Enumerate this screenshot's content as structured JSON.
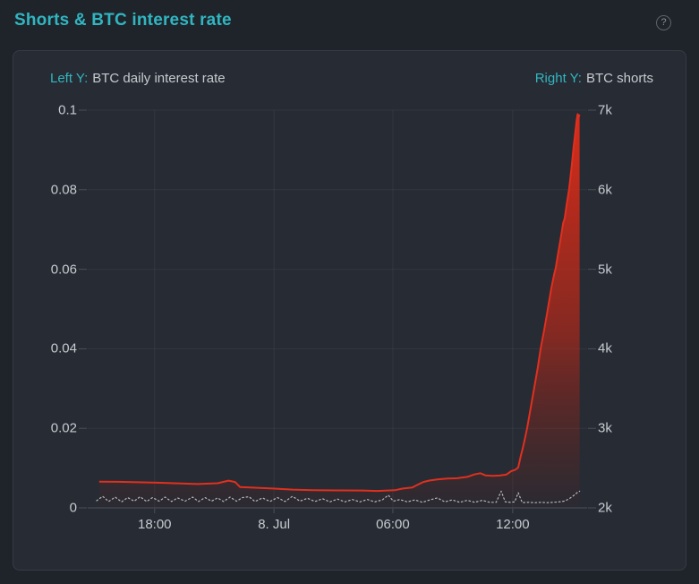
{
  "page": {
    "title": "Shorts & BTC interest rate",
    "help_icon": "?"
  },
  "legend": {
    "left_prefix": "Left Y:",
    "left_label": "BTC daily interest rate",
    "right_prefix": "Right Y:",
    "right_label": "BTC shorts"
  },
  "colors": {
    "accent_teal": "#31b6c1",
    "red_line": "#e0301f",
    "dotted_line": "#b5bac1",
    "card_bg": "#272b33",
    "page_bg": "#1f242b",
    "grid": "rgba(255,255,255,0.055)",
    "axis_line": "#454b53",
    "tick_text": "#c6cad0"
  },
  "chart_data": {
    "type": "line",
    "title": "Shorts & BTC interest rate",
    "grid": true,
    "legend_position": "top",
    "x_axis": {
      "ticks": [
        {
          "label": "18:00",
          "f": 0.134
        },
        {
          "label": "8. Jul",
          "f": 0.373
        },
        {
          "label": "06:00",
          "f": 0.611
        },
        {
          "label": "12:00",
          "f": 0.851
        }
      ]
    },
    "left_axis": {
      "label": "BTC daily interest rate",
      "range": [
        0,
        0.1
      ],
      "ticks": [
        {
          "label": "0.1",
          "v": 0.1
        },
        {
          "label": "0.08",
          "v": 0.08
        },
        {
          "label": "0.06",
          "v": 0.06
        },
        {
          "label": "0.04",
          "v": 0.04
        },
        {
          "label": "0.02",
          "v": 0.02
        },
        {
          "label": "0",
          "v": 0
        }
      ]
    },
    "right_axis": {
      "label": "BTC shorts",
      "range": [
        2000,
        7000
      ],
      "ticks": [
        {
          "label": "7k",
          "v": 7000
        },
        {
          "label": "6k",
          "v": 6000
        },
        {
          "label": "5k",
          "v": 5000
        },
        {
          "label": "4k",
          "v": 4000
        },
        {
          "label": "3k",
          "v": 3000
        },
        {
          "label": "2k",
          "v": 2000
        }
      ]
    },
    "series": [
      {
        "name": "BTC shorts",
        "axis": "right",
        "color": "#e0301f",
        "style": "solid",
        "area": true,
        "points": [
          [
            0.023,
            2330
          ],
          [
            0.06,
            2328
          ],
          [
            0.1,
            2322
          ],
          [
            0.14,
            2316
          ],
          [
            0.18,
            2308
          ],
          [
            0.22,
            2300
          ],
          [
            0.26,
            2310
          ],
          [
            0.282,
            2342
          ],
          [
            0.295,
            2325
          ],
          [
            0.305,
            2262
          ],
          [
            0.33,
            2255
          ],
          [
            0.37,
            2243
          ],
          [
            0.41,
            2230
          ],
          [
            0.45,
            2223
          ],
          [
            0.5,
            2220
          ],
          [
            0.55,
            2218
          ],
          [
            0.58,
            2213
          ],
          [
            0.615,
            2222
          ],
          [
            0.63,
            2242
          ],
          [
            0.65,
            2256
          ],
          [
            0.662,
            2295
          ],
          [
            0.672,
            2325
          ],
          [
            0.684,
            2343
          ],
          [
            0.7,
            2357
          ],
          [
            0.72,
            2368
          ],
          [
            0.74,
            2373
          ],
          [
            0.76,
            2390
          ],
          [
            0.774,
            2420
          ],
          [
            0.786,
            2436
          ],
          [
            0.797,
            2408
          ],
          [
            0.81,
            2403
          ],
          [
            0.825,
            2406
          ],
          [
            0.838,
            2418
          ],
          [
            0.848,
            2462
          ],
          [
            0.856,
            2478
          ],
          [
            0.862,
            2508
          ],
          [
            0.867,
            2650
          ],
          [
            0.871,
            2745
          ],
          [
            0.875,
            2860
          ],
          [
            0.88,
            3005
          ],
          [
            0.887,
            3255
          ],
          [
            0.894,
            3510
          ],
          [
            0.901,
            3760
          ],
          [
            0.907,
            4005
          ],
          [
            0.914,
            4235
          ],
          [
            0.921,
            4490
          ],
          [
            0.928,
            4750
          ],
          [
            0.934,
            4940
          ],
          [
            0.937,
            5010
          ],
          [
            0.941,
            5165
          ],
          [
            0.948,
            5425
          ],
          [
            0.952,
            5580
          ],
          [
            0.955,
            5640
          ],
          [
            0.959,
            5810
          ],
          [
            0.964,
            6010
          ],
          [
            0.969,
            6290
          ],
          [
            0.973,
            6540
          ],
          [
            0.976,
            6700
          ],
          [
            0.979,
            6870
          ],
          [
            0.981,
            6950
          ],
          [
            0.983,
            6915
          ],
          [
            0.985,
            6945
          ]
        ]
      },
      {
        "name": "BTC daily interest rate",
        "axis": "left",
        "color": "#b5bac1",
        "style": "dotted",
        "area": false,
        "points": [
          [
            0.018,
            0.0018
          ],
          [
            0.03,
            0.0029
          ],
          [
            0.042,
            0.0016
          ],
          [
            0.055,
            0.0027
          ],
          [
            0.068,
            0.0015
          ],
          [
            0.08,
            0.0026
          ],
          [
            0.093,
            0.0017
          ],
          [
            0.105,
            0.0028
          ],
          [
            0.118,
            0.0016
          ],
          [
            0.13,
            0.0026
          ],
          [
            0.143,
            0.0017
          ],
          [
            0.155,
            0.0027
          ],
          [
            0.168,
            0.0016
          ],
          [
            0.18,
            0.0025
          ],
          [
            0.195,
            0.0017
          ],
          [
            0.21,
            0.0027
          ],
          [
            0.222,
            0.0016
          ],
          [
            0.235,
            0.0026
          ],
          [
            0.248,
            0.0017
          ],
          [
            0.26,
            0.0025
          ],
          [
            0.272,
            0.0016
          ],
          [
            0.285,
            0.0027
          ],
          [
            0.298,
            0.0017
          ],
          [
            0.31,
            0.0026
          ],
          [
            0.323,
            0.0028
          ],
          [
            0.335,
            0.0016
          ],
          [
            0.35,
            0.0025
          ],
          [
            0.365,
            0.0016
          ],
          [
            0.38,
            0.0026
          ],
          [
            0.395,
            0.0016
          ],
          [
            0.41,
            0.0029
          ],
          [
            0.425,
            0.0017
          ],
          [
            0.44,
            0.0024
          ],
          [
            0.455,
            0.0016
          ],
          [
            0.47,
            0.0023
          ],
          [
            0.485,
            0.0015
          ],
          [
            0.5,
            0.0022
          ],
          [
            0.515,
            0.0015
          ],
          [
            0.53,
            0.0021
          ],
          [
            0.545,
            0.0015
          ],
          [
            0.56,
            0.0021
          ],
          [
            0.575,
            0.0015
          ],
          [
            0.59,
            0.002
          ],
          [
            0.602,
            0.0032
          ],
          [
            0.612,
            0.0017
          ],
          [
            0.625,
            0.0021
          ],
          [
            0.64,
            0.0015
          ],
          [
            0.655,
            0.002
          ],
          [
            0.67,
            0.0014
          ],
          [
            0.685,
            0.002
          ],
          [
            0.7,
            0.0025
          ],
          [
            0.715,
            0.0015
          ],
          [
            0.73,
            0.002
          ],
          [
            0.745,
            0.0014
          ],
          [
            0.76,
            0.0019
          ],
          [
            0.775,
            0.0014
          ],
          [
            0.79,
            0.0019
          ],
          [
            0.805,
            0.0014
          ],
          [
            0.818,
            0.0014
          ],
          [
            0.828,
            0.0042
          ],
          [
            0.836,
            0.0015
          ],
          [
            0.846,
            0.0014
          ],
          [
            0.855,
            0.0015
          ],
          [
            0.862,
            0.0038
          ],
          [
            0.87,
            0.0013
          ],
          [
            0.882,
            0.0014
          ],
          [
            0.895,
            0.0013
          ],
          [
            0.908,
            0.0014
          ],
          [
            0.92,
            0.0013
          ],
          [
            0.932,
            0.0014
          ],
          [
            0.944,
            0.0015
          ],
          [
            0.954,
            0.0017
          ],
          [
            0.963,
            0.0022
          ],
          [
            0.972,
            0.003
          ],
          [
            0.98,
            0.0038
          ],
          [
            0.985,
            0.0042
          ]
        ]
      }
    ]
  }
}
